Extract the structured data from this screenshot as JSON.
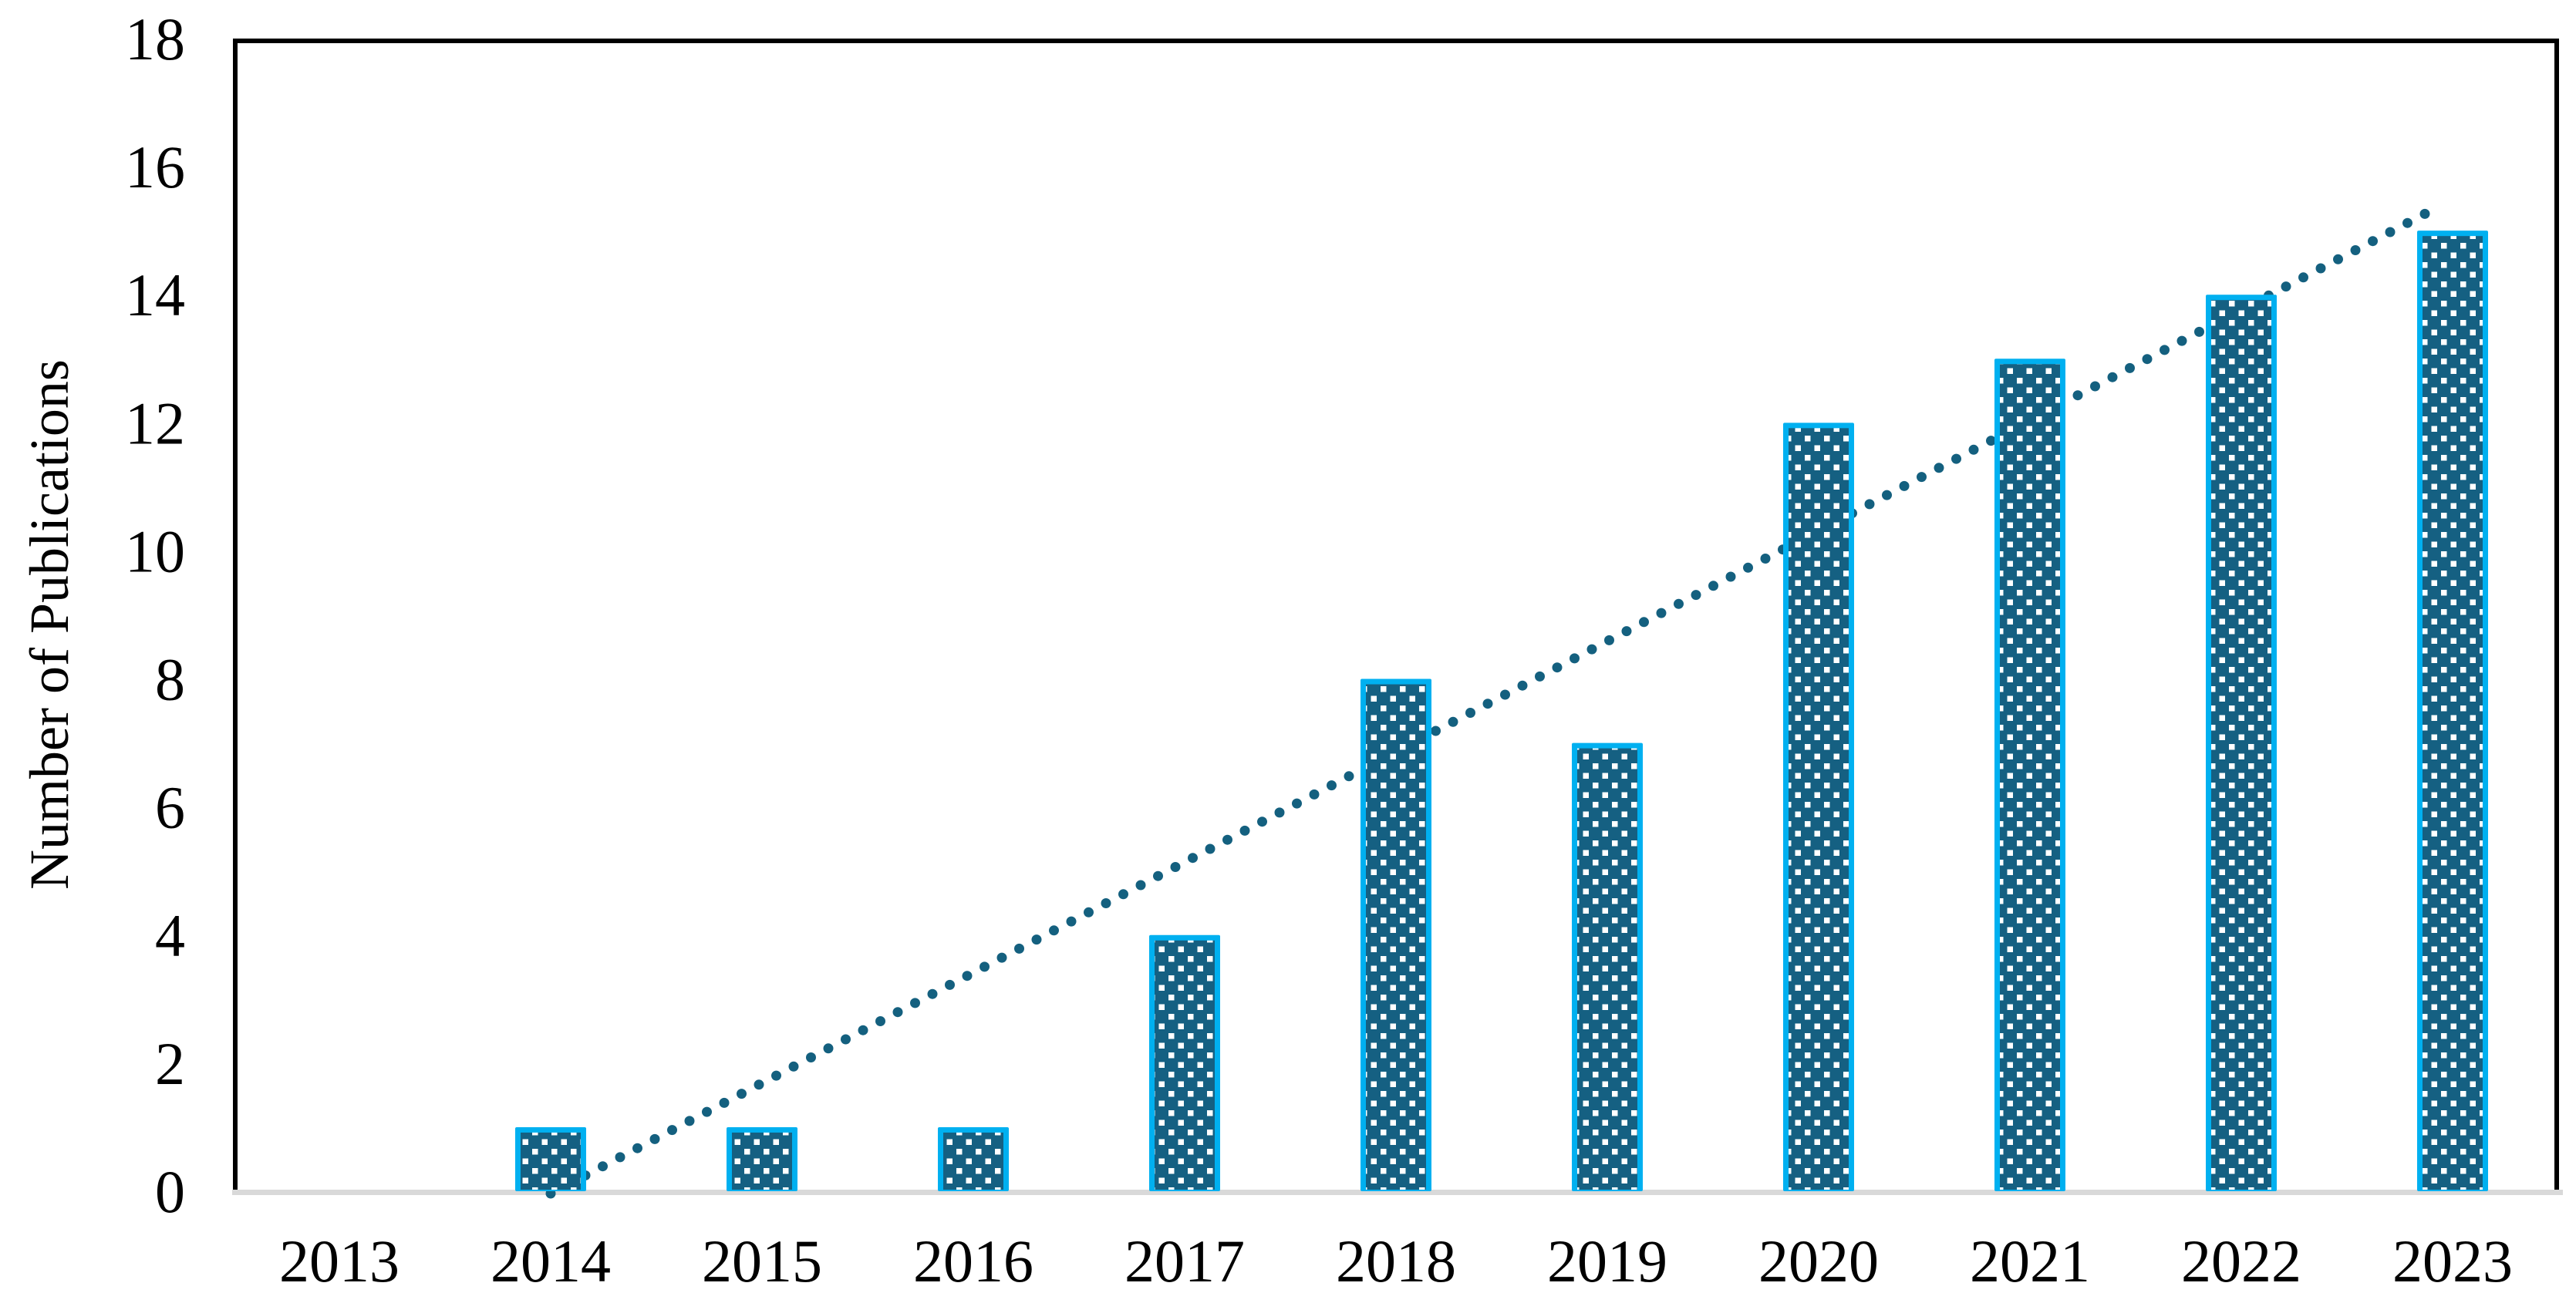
{
  "chart_data": {
    "type": "bar",
    "title": "",
    "xlabel": "",
    "ylabel": "Number of Publications",
    "categories": [
      "2013",
      "2014",
      "2015",
      "2016",
      "2017",
      "2018",
      "2019",
      "2020",
      "2021",
      "2022",
      "2023"
    ],
    "values": [
      0,
      1,
      1,
      1,
      4,
      8,
      7,
      12,
      13,
      14,
      15
    ],
    "series_name": "Number of Publications",
    "ylim": [
      0,
      18
    ],
    "yticks": [
      0,
      2,
      4,
      6,
      8,
      10,
      12,
      14,
      16,
      18
    ],
    "grid": false,
    "legend_position": "none",
    "bar_pattern": "white-diagonal-dot-checker",
    "trendline": {
      "style": "dotted",
      "shape": "round-dots",
      "start_year": "2014",
      "start_value": 0,
      "end_year": "2023",
      "end_value": 15.4
    },
    "colors": {
      "bar_fill": "#156082",
      "bar_border": "#00B0F0",
      "pattern_dot": "#ffffff",
      "trend_dot": "#14607F",
      "baseline": "#D9D9D9",
      "plot_border": "#000000",
      "text": "#000000"
    }
  }
}
